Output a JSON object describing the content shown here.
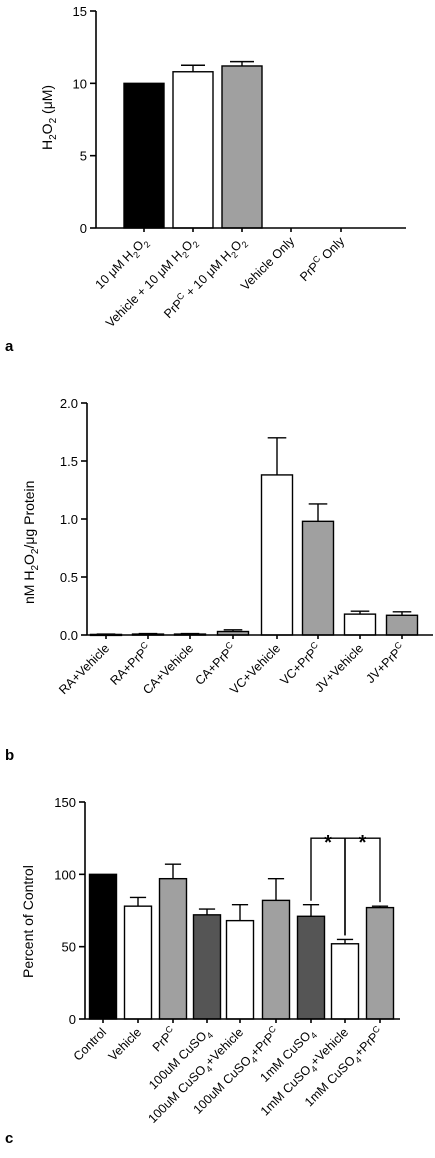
{
  "colors": {
    "black": "#000000",
    "white": "#ffffff",
    "grey": "#a0a0a0",
    "dark_grey": "#555555"
  },
  "chart_data": [
    {
      "panel": "a",
      "type": "bar",
      "ylabel": "H2O2 (μM)",
      "ylim": [
        0,
        15
      ],
      "yticks": [
        0,
        5,
        10,
        15
      ],
      "ytick_labels": [
        "0",
        "5",
        "10",
        "15"
      ],
      "grid": false,
      "categories": [
        "10 μM H2O2",
        "Vehicle + 10 μM H2O2",
        "PrPC + 10 μM H2O2",
        "Vehicle Only",
        "PrPC Only"
      ],
      "values": [
        10.0,
        10.8,
        11.2,
        0,
        0
      ],
      "errors": [
        0,
        0.45,
        0.3,
        0,
        0
      ],
      "fills": [
        "black",
        "white",
        "grey",
        "white",
        "white"
      ]
    },
    {
      "panel": "b",
      "type": "bar",
      "ylabel": "nM H2O2/μg Protein",
      "ylim": [
        0,
        2.0
      ],
      "yticks": [
        0,
        0.5,
        1.0,
        1.5,
        2.0
      ],
      "ytick_labels": [
        "0.0",
        "0.5",
        "1.0",
        "1.5",
        "2.0"
      ],
      "grid": false,
      "categories": [
        "RA+Vehicle",
        "RA+PrPC",
        "CA+Vehicle",
        "CA+PrPC",
        "VC+Vehicle",
        "VC+PrPC",
        "JV+Vehicle",
        "JV+PrPC"
      ],
      "values": [
        0.005,
        0.008,
        0.008,
        0.03,
        1.38,
        0.98,
        0.18,
        0.17
      ],
      "errors": [
        0.003,
        0.004,
        0.004,
        0.015,
        0.32,
        0.15,
        0.025,
        0.03
      ],
      "fills": [
        "white",
        "grey",
        "white",
        "grey",
        "white",
        "grey",
        "white",
        "grey"
      ]
    },
    {
      "panel": "c",
      "type": "bar",
      "ylabel": "Percent of Control",
      "ylim": [
        0,
        150
      ],
      "yticks": [
        0,
        50,
        100,
        150
      ],
      "ytick_labels": [
        "0",
        "50",
        "100",
        "150"
      ],
      "grid": false,
      "categories": [
        "Control",
        "Vehicle",
        "PrPC",
        "100uM CuSO4",
        "100uM CuSO4+Vehicle",
        "100uM CuSO4+PrPC",
        "1mM CuSO4",
        "1mM CuSO4+Vehicle",
        "1mM CuSO4+PrPC"
      ],
      "values": [
        100,
        78,
        97,
        72,
        68,
        82,
        71,
        52,
        77
      ],
      "errors": [
        0,
        6,
        10,
        4,
        11,
        15,
        8,
        3,
        1
      ],
      "fills": [
        "black",
        "white",
        "grey",
        "dark_grey",
        "white",
        "grey",
        "dark_grey",
        "white",
        "grey"
      ],
      "significance": [
        {
          "from": 6,
          "to": 7,
          "label": "*"
        },
        {
          "from": 7,
          "to": 8,
          "label": "*"
        }
      ]
    }
  ]
}
